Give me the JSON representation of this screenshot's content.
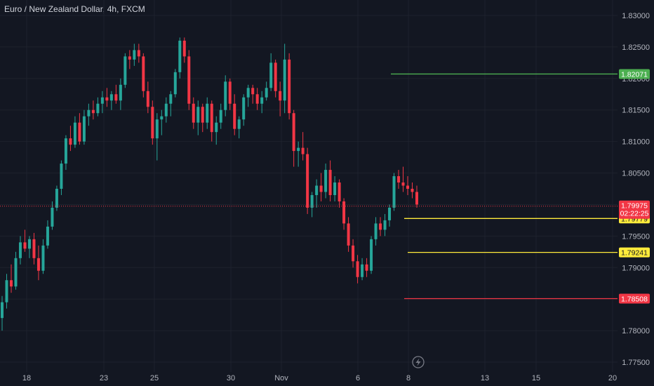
{
  "header": {
    "title": "Euro / New Zealand Dollar, 4h, FXCM"
  },
  "colors": {
    "background": "#131722",
    "up": "#26a69a",
    "down": "#f23645",
    "grid": "#1e222d",
    "green_level": "#4caf50",
    "yellow_level": "#ffeb3b",
    "red_level": "#f23645",
    "current": "#f23645"
  },
  "chart_data": {
    "type": "candlestick",
    "symbol": "EUR/NZD",
    "timeframe": "4h",
    "ylim": [
      1.7746,
      1.8306
    ],
    "y_ticks": [
      "1.83000",
      "1.82500",
      "1.82000",
      "1.81500",
      "1.81000",
      "1.80500",
      "1.80000",
      "1.79500",
      "1.79000",
      "1.78500",
      "1.78000",
      "1.77500"
    ],
    "x_ticks": [
      "18",
      "23",
      "25",
      "30",
      "Nov",
      "6",
      "8",
      "13",
      "15",
      "20"
    ],
    "current_price": "1.79975",
    "countdown": "02:22:25",
    "levels": [
      {
        "price": "1.82071",
        "color": "green"
      },
      {
        "price": "1.79779",
        "color": "yellow"
      },
      {
        "price": "1.79241",
        "color": "yellow"
      },
      {
        "price": "1.78508",
        "color": "red"
      }
    ],
    "candles": [
      [
        1.782,
        1.7855,
        1.78,
        1.7845
      ],
      [
        1.7845,
        1.789,
        1.7835,
        1.788
      ],
      [
        1.788,
        1.7905,
        1.786,
        1.787
      ],
      [
        1.787,
        1.7925,
        1.7865,
        1.7915
      ],
      [
        1.7915,
        1.795,
        1.7905,
        1.794
      ],
      [
        1.794,
        1.796,
        1.7925,
        1.793
      ],
      [
        1.793,
        1.795,
        1.7915,
        1.7945
      ],
      [
        1.7945,
        1.7955,
        1.7905,
        1.7915
      ],
      [
        1.7915,
        1.7935,
        1.788,
        1.7895
      ],
      [
        1.7895,
        1.7945,
        1.789,
        1.7935
      ],
      [
        1.7935,
        1.7975,
        1.793,
        1.7965
      ],
      [
        1.7965,
        1.8005,
        1.796,
        1.7995
      ],
      [
        1.7995,
        1.803,
        1.799,
        1.8025
      ],
      [
        1.8025,
        1.807,
        1.8015,
        1.8065
      ],
      [
        1.8065,
        1.811,
        1.8055,
        1.8105
      ],
      [
        1.8105,
        1.8125,
        1.8085,
        1.8095
      ],
      [
        1.8095,
        1.814,
        1.809,
        1.813
      ],
      [
        1.813,
        1.8145,
        1.8095,
        1.81
      ],
      [
        1.81,
        1.815,
        1.8095,
        1.814
      ],
      [
        1.814,
        1.816,
        1.8125,
        1.815
      ],
      [
        1.815,
        1.8165,
        1.8135,
        1.8145
      ],
      [
        1.8145,
        1.817,
        1.814,
        1.816
      ],
      [
        1.816,
        1.818,
        1.8145,
        1.817
      ],
      [
        1.817,
        1.8185,
        1.8155,
        1.8165
      ],
      [
        1.8165,
        1.818,
        1.815,
        1.8175
      ],
      [
        1.8175,
        1.819,
        1.816,
        1.8165
      ],
      [
        1.8165,
        1.82,
        1.815,
        1.819
      ],
      [
        1.819,
        1.824,
        1.8185,
        1.8235
      ],
      [
        1.8235,
        1.8245,
        1.8215,
        1.823
      ],
      [
        1.823,
        1.8255,
        1.822,
        1.8245
      ],
      [
        1.8245,
        1.8255,
        1.8225,
        1.8235
      ],
      [
        1.8235,
        1.824,
        1.817,
        1.818
      ],
      [
        1.818,
        1.8195,
        1.8145,
        1.8155
      ],
      [
        1.8155,
        1.8165,
        1.8095,
        1.8105
      ],
      [
        1.8105,
        1.8145,
        1.807,
        1.8135
      ],
      [
        1.8135,
        1.815,
        1.811,
        1.814
      ],
      [
        1.814,
        1.817,
        1.813,
        1.816
      ],
      [
        1.816,
        1.818,
        1.814,
        1.8175
      ],
      [
        1.8175,
        1.8215,
        1.817,
        1.821
      ],
      [
        1.821,
        1.8265,
        1.82,
        1.826
      ],
      [
        1.826,
        1.8265,
        1.8225,
        1.8235
      ],
      [
        1.8235,
        1.8245,
        1.815,
        1.816
      ],
      [
        1.816,
        1.817,
        1.812,
        1.813
      ],
      [
        1.813,
        1.8165,
        1.811,
        1.8155
      ],
      [
        1.8155,
        1.816,
        1.8115,
        1.813
      ],
      [
        1.813,
        1.817,
        1.812,
        1.816
      ],
      [
        1.816,
        1.8165,
        1.81,
        1.8115
      ],
      [
        1.8115,
        1.814,
        1.8095,
        1.813
      ],
      [
        1.813,
        1.816,
        1.812,
        1.815
      ],
      [
        1.815,
        1.8205,
        1.814,
        1.8195
      ],
      [
        1.8195,
        1.82,
        1.815,
        1.816
      ],
      [
        1.816,
        1.8175,
        1.811,
        1.812
      ],
      [
        1.812,
        1.814,
        1.8105,
        1.8135
      ],
      [
        1.8135,
        1.8175,
        1.8125,
        1.817
      ],
      [
        1.817,
        1.819,
        1.8155,
        1.8185
      ],
      [
        1.8185,
        1.819,
        1.816,
        1.8175
      ],
      [
        1.8175,
        1.8185,
        1.815,
        1.816
      ],
      [
        1.816,
        1.818,
        1.8145,
        1.817
      ],
      [
        1.817,
        1.8195,
        1.8165,
        1.8185
      ],
      [
        1.8185,
        1.824,
        1.818,
        1.8225
      ],
      [
        1.8225,
        1.823,
        1.817,
        1.818
      ],
      [
        1.818,
        1.8195,
        1.814,
        1.8165
      ],
      [
        1.8165,
        1.8255,
        1.8145,
        1.823
      ],
      [
        1.823,
        1.824,
        1.8135,
        1.8145
      ],
      [
        1.8145,
        1.815,
        1.806,
        1.8085
      ],
      [
        1.8085,
        1.81,
        1.806,
        1.809
      ],
      [
        1.809,
        1.8115,
        1.807,
        1.808
      ],
      [
        1.808,
        1.809,
        1.7985,
        1.7995
      ],
      [
        1.7995,
        1.802,
        1.798,
        1.8015
      ],
      [
        1.8015,
        1.804,
        1.7995,
        1.803
      ],
      [
        1.803,
        1.805,
        1.8005,
        1.802
      ],
      [
        1.802,
        1.8065,
        1.801,
        1.8055
      ],
      [
        1.8055,
        1.807,
        1.8005,
        1.8015
      ],
      [
        1.8015,
        1.8045,
        1.8005,
        1.8035
      ],
      [
        1.8035,
        1.804,
        1.7995,
        1.8005
      ],
      [
        1.8005,
        1.801,
        1.796,
        1.797
      ],
      [
        1.797,
        1.798,
        1.7925,
        1.7935
      ],
      [
        1.7935,
        1.7945,
        1.79,
        1.791
      ],
      [
        1.791,
        1.792,
        1.7875,
        1.7885
      ],
      [
        1.7885,
        1.7915,
        1.788,
        1.7905
      ],
      [
        1.7905,
        1.7915,
        1.7885,
        1.7895
      ],
      [
        1.7895,
        1.795,
        1.789,
        1.7945
      ],
      [
        1.7945,
        1.798,
        1.7935,
        1.797
      ],
      [
        1.797,
        1.798,
        1.795,
        1.796
      ],
      [
        1.796,
        1.7985,
        1.795,
        1.7975
      ],
      [
        1.7975,
        1.8,
        1.7965,
        1.7995
      ],
      [
        1.7995,
        1.805,
        1.799,
        1.8045
      ],
      [
        1.8045,
        1.8055,
        1.8025,
        1.8035
      ],
      [
        1.8035,
        1.806,
        1.802,
        1.803
      ],
      [
        1.803,
        1.8045,
        1.8015,
        1.8025
      ],
      [
        1.8025,
        1.8035,
        1.801,
        1.802
      ],
      [
        1.802,
        1.803,
        1.7995,
        1.8
      ]
    ]
  }
}
